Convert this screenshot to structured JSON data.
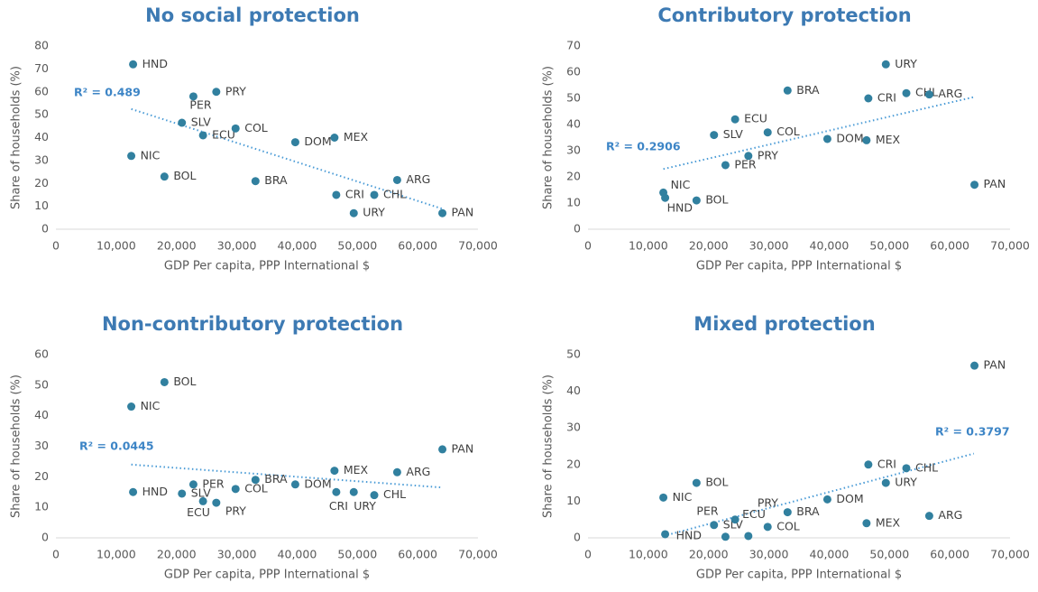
{
  "chart_data": [
    {
      "type": "scatter",
      "title": "No social protection",
      "x_label": "GDP Per capita, PPP International $",
      "y_label": "Share of households (%)",
      "labels": [
        "HND",
        "NIC",
        "BOL",
        "SLV",
        "PER",
        "ECU",
        "PRY",
        "COL",
        "BRA",
        "DOM",
        "MEX",
        "CRI",
        "URY",
        "CHL",
        "ARG",
        "PAN"
      ],
      "x": [
        12800,
        12500,
        18000,
        20900,
        22800,
        24400,
        26600,
        29800,
        33100,
        39700,
        46200,
        46500,
        49400,
        52800,
        56600,
        64100
      ],
      "values": [
        72,
        32,
        23,
        46.5,
        58,
        41,
        60,
        44,
        21,
        38,
        40,
        15,
        7,
        15,
        21.5,
        7
      ],
      "color": "#31809f",
      "trendline": {
        "x": [
          12500,
          64000
        ],
        "values": [
          52.5,
          9
        ],
        "color": "#4a9bd6"
      },
      "annotation": "R² = 0.489",
      "xlim": [
        0,
        70000
      ],
      "xticks": [
        0,
        {
          "value": 10000,
          "label": "10,000"
        },
        {
          "value": 20000,
          "label": "20,000"
        },
        {
          "value": 30000,
          "label": "30,000"
        },
        {
          "value": 40000,
          "label": "40,000"
        },
        {
          "value": 50000,
          "label": "50,000"
        },
        {
          "value": 60000,
          "label": "60,000"
        },
        {
          "value": 70000,
          "label": "70,000"
        }
      ],
      "ylim": [
        0,
        80
      ],
      "yticks": [
        0,
        10,
        20,
        30,
        40,
        50,
        60,
        70,
        80
      ]
    },
    {
      "type": "scatter",
      "title": "Contributory protection",
      "x_label": "GDP Per capita, PPP International $",
      "y_label": "Share of households (%)",
      "labels": [
        "HND",
        "NIC",
        "BOL",
        "SLV",
        "PER",
        "ECU",
        "PRY",
        "COL",
        "BRA",
        "DOM",
        "MEX",
        "CRI",
        "URY",
        "CHL",
        "ARG",
        "PAN"
      ],
      "x": [
        12800,
        12500,
        18000,
        20900,
        22800,
        24400,
        26600,
        29800,
        33100,
        39700,
        46200,
        46500,
        49400,
        52800,
        56600,
        64100
      ],
      "values": [
        12,
        14,
        11,
        36,
        24.5,
        42,
        28,
        37,
        53,
        34.5,
        34,
        50,
        63,
        52,
        51.5,
        17
      ],
      "color": "#31809f",
      "trendline": {
        "x": [
          12500,
          64000
        ],
        "values": [
          23,
          50.5
        ],
        "color": "#4a9bd6"
      },
      "annotation": "R² = 0.2906",
      "xlim": [
        0,
        70000
      ],
      "xticks": [
        0,
        {
          "value": 10000,
          "label": "10,000"
        },
        {
          "value": 20000,
          "label": "20,000"
        },
        {
          "value": 30000,
          "label": "30,000"
        },
        {
          "value": 40000,
          "label": "40,000"
        },
        {
          "value": 50000,
          "label": "50,000"
        },
        {
          "value": 60000,
          "label": "60,000"
        },
        {
          "value": 70000,
          "label": "70,000"
        }
      ],
      "ylim": [
        0,
        70
      ],
      "yticks": [
        0,
        10,
        20,
        30,
        40,
        50,
        60,
        70
      ]
    },
    {
      "type": "scatter",
      "title": "Non-contributory protection",
      "x_label": "GDP Per capita, PPP International $",
      "y_label": "Share of households (%)",
      "labels": [
        "HND",
        "NIC",
        "BOL",
        "SLV",
        "PER",
        "ECU",
        "PRY",
        "COL",
        "BRA",
        "DOM",
        "MEX",
        "CRI",
        "URY",
        "CHL",
        "ARG",
        "PAN"
      ],
      "x": [
        12800,
        12500,
        18000,
        20900,
        22800,
        24400,
        26600,
        29800,
        33100,
        39700,
        46200,
        46500,
        49400,
        52800,
        56600,
        64100
      ],
      "values": [
        15,
        43,
        51,
        14.5,
        17.5,
        12,
        11.5,
        16,
        19,
        17.5,
        22,
        15,
        15,
        14,
        21.5,
        29
      ],
      "color": "#31809f",
      "trendline": {
        "x": [
          12500,
          64000
        ],
        "values": [
          24,
          16.5
        ],
        "color": "#4a9bd6"
      },
      "annotation": "R² = 0.0445",
      "xlim": [
        0,
        70000
      ],
      "xticks": [
        0,
        {
          "value": 10000,
          "label": "10,000"
        },
        {
          "value": 20000,
          "label": "20,000"
        },
        {
          "value": 30000,
          "label": "30,000"
        },
        {
          "value": 40000,
          "label": "40,000"
        },
        {
          "value": 50000,
          "label": "50,000"
        },
        {
          "value": 60000,
          "label": "60,000"
        },
        {
          "value": 70000,
          "label": "70,000"
        }
      ],
      "ylim": [
        0,
        60
      ],
      "yticks": [
        0,
        10,
        20,
        30,
        40,
        50,
        60
      ]
    },
    {
      "type": "scatter",
      "title": "Mixed protection",
      "x_label": "GDP Per capita, PPP International $",
      "y_label": "Share of households (%)",
      "labels": [
        "HND",
        "NIC",
        "BOL",
        "SLV",
        "PER",
        "ECU",
        "PRY",
        "COL",
        "BRA",
        "DOM",
        "MEX",
        "CRI",
        "URY",
        "CHL",
        "ARG",
        "PAN"
      ],
      "x": [
        12800,
        12500,
        18000,
        20900,
        22800,
        24400,
        26600,
        29800,
        33100,
        39700,
        46200,
        46500,
        49400,
        52800,
        56600,
        64100
      ],
      "values": [
        1,
        11,
        15,
        3.5,
        0.3,
        5,
        0.5,
        3,
        7,
        10.5,
        4,
        20,
        15,
        19,
        6,
        47
      ],
      "color": "#31809f",
      "trendline": {
        "x": [
          12500,
          64000
        ],
        "values": [
          0.5,
          23
        ],
        "color": "#4a9bd6"
      },
      "annotation": "R² = 0.3797",
      "xlim": [
        0,
        70000
      ],
      "xticks": [
        0,
        {
          "value": 10000,
          "label": "10,000"
        },
        {
          "value": 20000,
          "label": "20,000"
        },
        {
          "value": 30000,
          "label": "30,000"
        },
        {
          "value": 40000,
          "label": "40,000"
        },
        {
          "value": 50000,
          "label": "50,000"
        },
        {
          "value": 60000,
          "label": "60,000"
        },
        {
          "value": 70000,
          "label": "70,000"
        }
      ],
      "ylim": [
        0,
        50
      ],
      "yticks": [
        0,
        10,
        20,
        30,
        40,
        50
      ]
    }
  ]
}
